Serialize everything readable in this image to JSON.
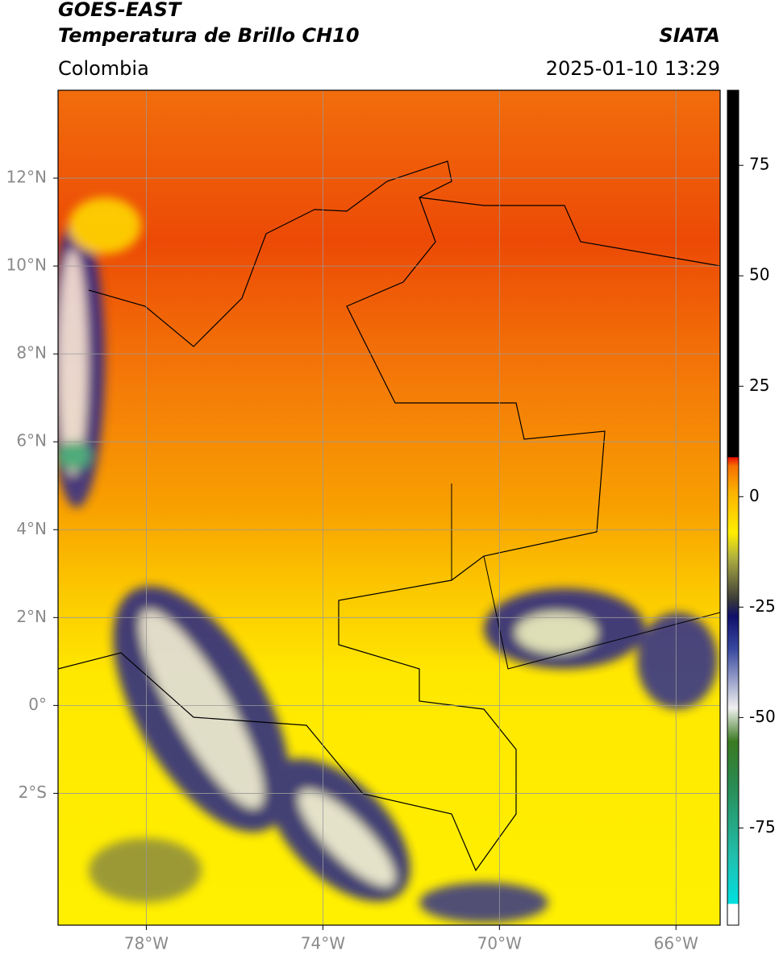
{
  "header": {
    "title": "GOES-EAST",
    "subtitle": "Temperatura de Brillo CH10",
    "region": "Colombia",
    "source": "SIATA",
    "datetime": "2025-01-10 13:29"
  },
  "map": {
    "xlim": [
      -80,
      -65
    ],
    "ylim": [
      -5,
      14
    ],
    "xticks": [
      {
        "value": -78,
        "label": "78°W"
      },
      {
        "value": -74,
        "label": "74°W"
      },
      {
        "value": -70,
        "label": "70°W"
      },
      {
        "value": -66,
        "label": "66°W"
      }
    ],
    "yticks": [
      {
        "value": 12,
        "label": "12°N"
      },
      {
        "value": 10,
        "label": "10°N"
      },
      {
        "value": 8,
        "label": "8°N"
      },
      {
        "value": 6,
        "label": "6°N"
      },
      {
        "value": 4,
        "label": "4°N"
      },
      {
        "value": 2,
        "label": "2°N"
      },
      {
        "value": 0,
        "label": "0°"
      },
      {
        "value": -2,
        "label": "2°S"
      }
    ]
  },
  "colorbar": {
    "lim": [
      -97,
      92
    ],
    "ticks": [
      75,
      50,
      25,
      0,
      -25,
      -50,
      -75
    ]
  }
}
